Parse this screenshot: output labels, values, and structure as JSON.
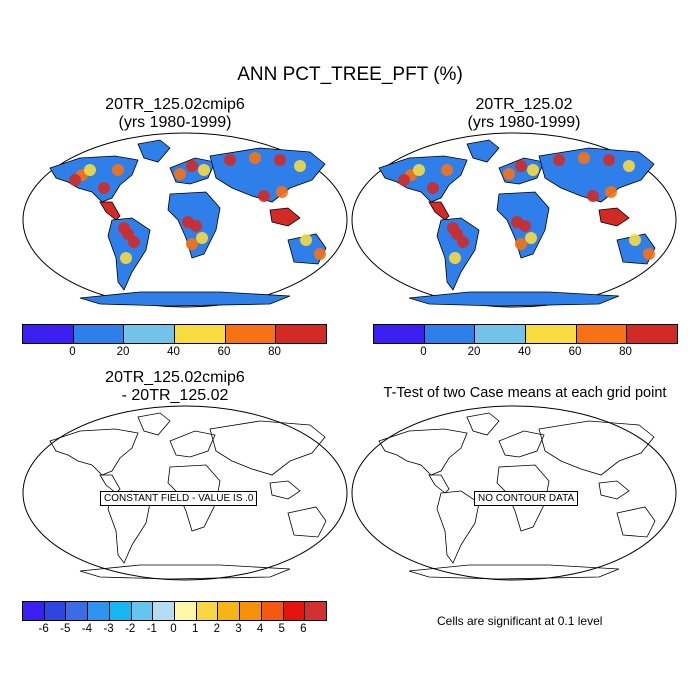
{
  "title": "ANN PCT_TREE_PFT (%)",
  "panels": {
    "top_left": {
      "title_line1": "20TR_125.02cmip6",
      "title_line2": "(yrs 1980-1999)"
    },
    "top_right": {
      "title_line1": "20TR_125.02",
      "title_line2": "(yrs 1980-1999)"
    },
    "bottom_left": {
      "title_line1": "20TR_125.02cmip6",
      "title_line2": "- 20TR_125.02",
      "box_text": "CONSTANT FIELD - VALUE IS .0"
    },
    "bottom_right": {
      "title": "T-Test of two Case means at each grid point",
      "box_text": "NO CONTOUR DATA"
    }
  },
  "colorbar_pct": {
    "colors": [
      "#3b1ef2",
      "#2f7fea",
      "#72c2ea",
      "#f7dc40",
      "#f77214",
      "#d22b26"
    ],
    "labels": [
      "0",
      "20",
      "40",
      "60",
      "80"
    ]
  },
  "colorbar_diff": {
    "colors": [
      "#3a20f0",
      "#2f45e0",
      "#3a6ce8",
      "#2f93f0",
      "#16b6f5",
      "#64c6ee",
      "#b4dcf5",
      "#fff6a6",
      "#f8d842",
      "#f7b515",
      "#f79009",
      "#f55810",
      "#e4130c",
      "#d03030"
    ],
    "labels": [
      "-6",
      "-5",
      "-4",
      "-3",
      "-2",
      "-1",
      "0",
      "1",
      "2",
      "3",
      "4",
      "5",
      "6"
    ]
  },
  "footnote": "Cells are significant at 0.1 level",
  "map_colors": {
    "ocean": "#ffffff",
    "land_outline": "#000000",
    "low": "#2f7fea",
    "mid": "#72c2ea",
    "warm": "#f7dc40",
    "hot": "#f77214",
    "max": "#d22b26"
  }
}
